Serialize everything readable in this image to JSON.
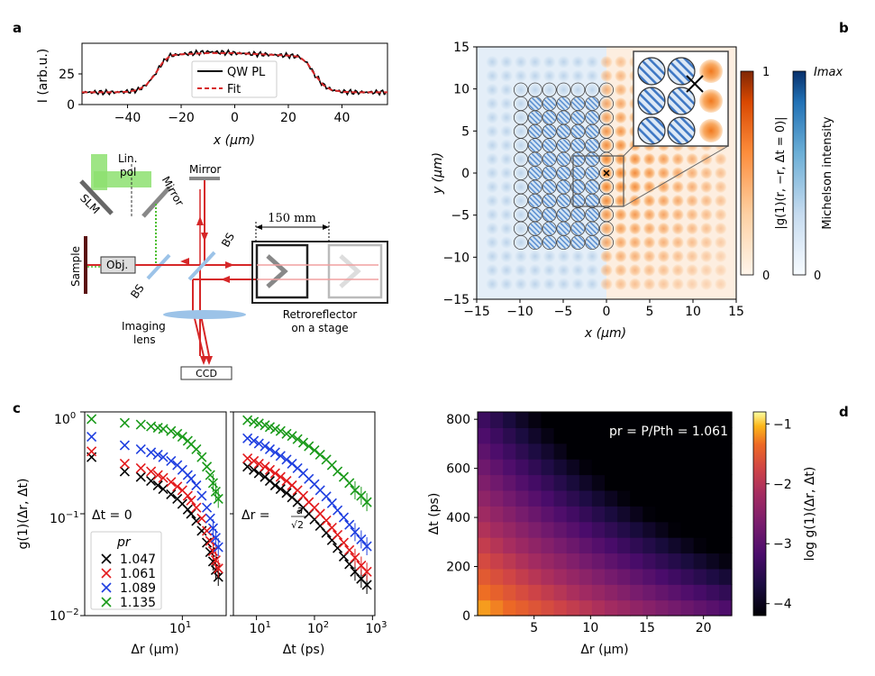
{
  "panel_labels": {
    "a": "a",
    "b": "b",
    "c": "c",
    "d": "d"
  },
  "setup": {
    "lin_pol_1": "Lin.",
    "lin_pol_2": "pol",
    "slm": "SLM",
    "mirror_1": "Mirror",
    "mirror_2": "Mirror",
    "distance": "150 mm",
    "bs_1": "BS",
    "bs_2": "BS",
    "sample": "Sample",
    "objective": "Obj.",
    "imaging_1": "Imaging",
    "imaging_2": "lens",
    "ccd": "CCD",
    "retro_1": "Retroreflector",
    "retro_2": "on a stage"
  },
  "chart_data": [
    {
      "id": "a",
      "type": "line",
      "xlabel": "x (μm)",
      "ylabel": "I (arb.u.)",
      "xlim": [
        -57,
        57
      ],
      "ylim": [
        0,
        50
      ],
      "xticks": [
        -40,
        -20,
        0,
        20,
        40
      ],
      "xtick_labels": [
        "−40",
        "−20",
        "0",
        "20",
        "40"
      ],
      "yticks": [
        0,
        25
      ],
      "ytick_labels": [
        "0",
        "25"
      ],
      "legend": "top-right",
      "series": [
        {
          "name": "QW PL",
          "color": "#000000",
          "x": [
            -57,
            -45,
            -40,
            -36,
            -33,
            -30,
            -27,
            -24,
            -20,
            -10,
            0,
            10,
            20,
            24,
            27,
            30,
            33,
            36,
            40,
            45,
            57
          ],
          "values": [
            10,
            10,
            10.5,
            12,
            16,
            24,
            34,
            40,
            41,
            43,
            42,
            41,
            40,
            39,
            34,
            24,
            16,
            12,
            10.5,
            10,
            10
          ]
        },
        {
          "name": "Fit",
          "color": "#d62728",
          "x": [
            -57,
            -45,
            -40,
            -36,
            -33,
            -30,
            -27,
            -24,
            -20,
            -10,
            0,
            10,
            20,
            24,
            27,
            30,
            33,
            36,
            40,
            45,
            57
          ],
          "values": [
            10,
            10,
            10.5,
            12,
            16,
            24,
            34,
            40,
            41,
            42,
            42,
            41,
            40,
            39,
            34,
            24,
            16,
            12,
            10.5,
            10,
            10
          ]
        }
      ]
    },
    {
      "id": "b",
      "type": "heatmap",
      "xlabel": "x (μm)",
      "ylabel": "y (μm)",
      "xlim": [
        -15,
        15
      ],
      "ylim": [
        -15,
        15
      ],
      "xticks": [
        -15,
        -10,
        -5,
        0,
        5,
        10,
        15
      ],
      "xtick_labels": [
        "−15",
        "−10",
        "−5",
        "0",
        "5",
        "10",
        "15"
      ],
      "yticks": [
        -15,
        -10,
        -5,
        0,
        5,
        10,
        15
      ],
      "ytick_labels": [
        "−15",
        "−10",
        "−5",
        "0",
        "5",
        "10",
        "15"
      ],
      "colorbar_coherence": {
        "label": "|g(1)(r, −r, Δt = 0)|",
        "ticks": [
          "0",
          "1"
        ]
      },
      "colorbar_intensity": {
        "label": "Michelson intensity",
        "ticks": [
          "0",
          "Imax"
        ]
      }
    },
    {
      "id": "c_left",
      "type": "scatter",
      "xlabel": "Δr (μm)",
      "ylabel": "g(1)(Δr, Δt)",
      "xscale": "log",
      "yscale": "log",
      "xlim": [
        1.3,
        25
      ],
      "ylim": [
        0.01,
        1.0
      ],
      "annotation": "Δt = 0",
      "legend_title": "pr",
      "legend": "bottom-left",
      "series": [
        {
          "name": "1.047",
          "color": "#000000",
          "x": [
            1.5,
            3.0,
            4.2,
            5.2,
            6.0,
            6.7,
            7.9,
            9.0,
            10.0,
            11.2,
            12.0,
            13.4,
            15.0,
            16.7,
            17.9,
            19.0,
            20.1,
            21.2
          ],
          "values": [
            0.36,
            0.26,
            0.23,
            0.21,
            0.19,
            0.175,
            0.155,
            0.14,
            0.125,
            0.11,
            0.1,
            0.085,
            0.068,
            0.052,
            0.042,
            0.034,
            0.028,
            0.024
          ]
        },
        {
          "name": "1.061",
          "color": "#e31a1c",
          "x": [
            1.5,
            3.0,
            4.2,
            5.2,
            6.0,
            6.7,
            7.9,
            9.0,
            10.0,
            11.2,
            12.0,
            13.4,
            15.0,
            16.7,
            17.9,
            19.0,
            20.1,
            21.2
          ],
          "values": [
            0.41,
            0.31,
            0.28,
            0.26,
            0.24,
            0.225,
            0.205,
            0.185,
            0.17,
            0.15,
            0.135,
            0.115,
            0.09,
            0.068,
            0.054,
            0.043,
            0.035,
            0.029
          ]
        },
        {
          "name": "1.089",
          "color": "#1f3fe0",
          "x": [
            1.5,
            3.0,
            4.2,
            5.2,
            6.0,
            6.7,
            7.9,
            9.0,
            10.0,
            11.2,
            12.0,
            13.4,
            15.0,
            16.7,
            17.9,
            19.0,
            20.1,
            21.2
          ],
          "values": [
            0.57,
            0.47,
            0.43,
            0.4,
            0.38,
            0.36,
            0.33,
            0.3,
            0.27,
            0.24,
            0.22,
            0.19,
            0.15,
            0.115,
            0.09,
            0.072,
            0.058,
            0.047
          ]
        },
        {
          "name": "1.135",
          "color": "#1a9a1a",
          "x": [
            1.5,
            3.0,
            4.2,
            5.2,
            6.0,
            6.7,
            7.9,
            9.0,
            10.0,
            11.2,
            12.0,
            13.4,
            15.0,
            16.7,
            17.9,
            19.0,
            20.1,
            21.2
          ],
          "values": [
            0.85,
            0.78,
            0.75,
            0.72,
            0.7,
            0.68,
            0.65,
            0.61,
            0.57,
            0.52,
            0.48,
            0.43,
            0.36,
            0.29,
            0.24,
            0.2,
            0.165,
            0.14
          ]
        }
      ]
    },
    {
      "id": "c_right",
      "type": "scatter",
      "xlabel": "Δt (ps)",
      "xscale": "log",
      "yscale": "log",
      "xlim": [
        4,
        1100
      ],
      "ylim": [
        0.01,
        1.0
      ],
      "xticks": [
        10,
        100,
        1000
      ],
      "xtick_labels": [
        "10",
        "10",
        "10"
      ],
      "xtick_exponents": [
        "1",
        "2",
        "3"
      ],
      "annotation": "Δr = a/√2",
      "series": [
        {
          "name": "1.047",
          "color": "#000000",
          "x": [
            7,
            9,
            11,
            14,
            17,
            21,
            26,
            33,
            41,
            51,
            64,
            80,
            100,
            125,
            160,
            200,
            250,
            320,
            400,
            500,
            640,
            800
          ],
          "values": [
            0.29,
            0.27,
            0.25,
            0.23,
            0.21,
            0.19,
            0.175,
            0.16,
            0.145,
            0.13,
            0.115,
            0.1,
            0.088,
            0.076,
            0.065,
            0.055,
            0.046,
            0.038,
            0.032,
            0.027,
            0.023,
            0.02
          ]
        },
        {
          "name": "1.061",
          "color": "#e31a1c",
          "x": [
            7,
            9,
            11,
            14,
            17,
            21,
            26,
            33,
            41,
            51,
            64,
            80,
            100,
            125,
            160,
            200,
            250,
            320,
            400,
            500,
            640,
            800
          ],
          "values": [
            0.35,
            0.33,
            0.31,
            0.29,
            0.27,
            0.25,
            0.23,
            0.21,
            0.19,
            0.17,
            0.15,
            0.13,
            0.115,
            0.1,
            0.086,
            0.073,
            0.062,
            0.052,
            0.044,
            0.037,
            0.031,
            0.027
          ]
        },
        {
          "name": "1.089",
          "color": "#1f3fe0",
          "x": [
            7,
            9,
            11,
            14,
            17,
            21,
            26,
            33,
            41,
            51,
            64,
            80,
            100,
            125,
            160,
            200,
            250,
            320,
            400,
            500,
            640,
            800
          ],
          "values": [
            0.55,
            0.52,
            0.49,
            0.46,
            0.43,
            0.4,
            0.37,
            0.34,
            0.31,
            0.28,
            0.25,
            0.22,
            0.195,
            0.17,
            0.148,
            0.127,
            0.108,
            0.092,
            0.078,
            0.066,
            0.056,
            0.048
          ]
        },
        {
          "name": "1.135",
          "color": "#1a9a1a",
          "x": [
            7,
            9,
            11,
            14,
            17,
            21,
            26,
            33,
            41,
            51,
            64,
            80,
            100,
            125,
            160,
            200,
            250,
            320,
            400,
            500,
            640,
            800
          ],
          "values": [
            0.83,
            0.8,
            0.77,
            0.74,
            0.71,
            0.68,
            0.65,
            0.61,
            0.58,
            0.54,
            0.5,
            0.46,
            0.42,
            0.38,
            0.34,
            0.3,
            0.26,
            0.23,
            0.2,
            0.17,
            0.15,
            0.13
          ]
        }
      ]
    },
    {
      "id": "d",
      "type": "heatmap",
      "xlabel": "Δr (μm)",
      "ylabel": "Δt (ps)",
      "xlim": [
        0,
        22.5
      ],
      "ylim": [
        0,
        830
      ],
      "xticks": [
        5,
        10,
        15,
        20
      ],
      "xtick_labels": [
        "5",
        "10",
        "15",
        "20"
      ],
      "yticks": [
        0,
        200,
        400,
        600,
        800
      ],
      "ytick_labels": [
        "0",
        "200",
        "400",
        "600",
        "800"
      ],
      "annotation": "pr = P/Pth = 1.061",
      "colorbar": {
        "label": "log g(1)(Δr, Δt)",
        "ticks": [
          -1,
          -2,
          -3,
          -4
        ],
        "tick_labels": [
          "−1",
          "−2",
          "−3",
          "−4"
        ],
        "range": [
          -4.2,
          -0.8
        ]
      }
    }
  ],
  "panel_a_text": {
    "ylabel": "I (arb.u.)",
    "xlabel": "x (μm)",
    "legend_pl": "QW PL",
    "legend_fit": "Fit"
  },
  "panel_b_text": {
    "xlabel": "x (μm)",
    "ylabel": "y (μm)",
    "cb1_label": "|g(1)(r, −r, Δt = 0)|",
    "cb1_max": "1",
    "cb1_min": "0",
    "cb2_label": "Michelson intensity",
    "cb2_max": "Imax",
    "cb2_min": "0"
  },
  "panel_c_text": {
    "ylabel": "g(1)(Δr, Δt)",
    "xlabel_left": "Δr (μm)",
    "xlabel_right": "Δt (ps)",
    "ann_left": "Δt = 0",
    "ann_right": "Δr =",
    "ann_right_num": "a",
    "ann_right_den": "√2",
    "legend_title": "pr",
    "ytick_0": "10",
    "ytick_0_exp": "0",
    "ytick_1": "10",
    "ytick_1_exp": "−1",
    "ytick_2": "10",
    "ytick_2_exp": "−2",
    "xtick_left": "10",
    "xtick_left_exp": "1"
  },
  "panel_d_text": {
    "xlabel": "Δr (μm)",
    "ylabel": "Δt (ps)",
    "annotation": "pr = P/Pth = 1.061",
    "cb_label": "log g(1)(Δr, Δt)"
  }
}
